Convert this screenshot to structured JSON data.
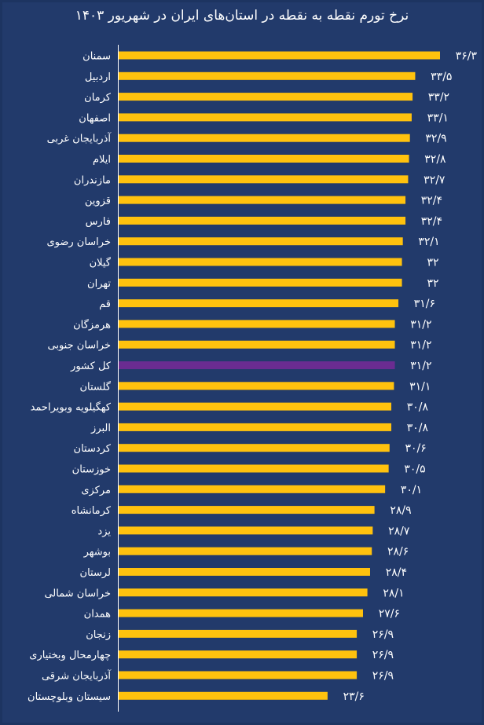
{
  "chart_data": {
    "type": "bar",
    "orientation": "horizontal",
    "title": "نرخ تورم نقطه به نقطه در استان‌های ایران در شهریور ۱۴۰۳",
    "categories": [
      "سمنان",
      "اردبیل",
      "کرمان",
      "اصفهان",
      "آذربایجان غربی",
      "ایلام",
      "مازندران",
      "قزوین",
      "فارس",
      "خراسان رضوی",
      "گیلان",
      "تهران",
      "قم",
      "هرمزگان",
      "خراسان جنوبی",
      "کل کشور",
      "گلستان",
      "کهگیلویه وبویراحمد",
      "البرز",
      "کردستان",
      "خوزستان",
      "مرکزی",
      "کرمانشاه",
      "یزد",
      "بوشهر",
      "لرستان",
      "خراسان شمالی",
      "همدان",
      "زنجان",
      "چهارمحال وبختیاری",
      "آذربایجان شرقی",
      "سیستان وبلوچستان"
    ],
    "values": [
      36.3,
      33.5,
      33.2,
      33.1,
      32.9,
      32.8,
      32.7,
      32.4,
      32.4,
      32.1,
      32,
      32,
      31.6,
      31.2,
      31.2,
      31.2,
      31.1,
      30.8,
      30.8,
      30.6,
      30.5,
      30.1,
      28.9,
      28.7,
      28.6,
      28.4,
      28.1,
      27.6,
      26.9,
      26.9,
      26.9,
      23.6
    ],
    "value_labels": [
      "۳۶/۳",
      "۳۳/۵",
      "۳۳/۲",
      "۳۳/۱",
      "۳۲/۹",
      "۳۲/۸",
      "۳۲/۷",
      "۳۲/۴",
      "۳۲/۴",
      "۳۲/۱",
      "۳۲",
      "۳۲",
      "۳۱/۶",
      "۳۱/۲",
      "۳۱/۲",
      "۳۱/۲",
      "۳۱/۱",
      "۳۰/۸",
      "۳۰/۸",
      "۳۰/۶",
      "۳۰/۵",
      "۳۰/۱",
      "۲۸/۹",
      "۲۸/۷",
      "۲۸/۶",
      "۲۸/۴",
      "۲۸/۱",
      "۲۷/۶",
      "۲۶/۹",
      "۲۶/۹",
      "۲۶/۹",
      "۲۳/۶"
    ],
    "highlight_category": "کل کشور",
    "xlim": [
      0,
      36.3
    ],
    "colors": {
      "bar": "#ffc20e",
      "highlight": "#6a2c91",
      "background": "#223a6b",
      "text": "#ffffff"
    },
    "grid": false
  }
}
